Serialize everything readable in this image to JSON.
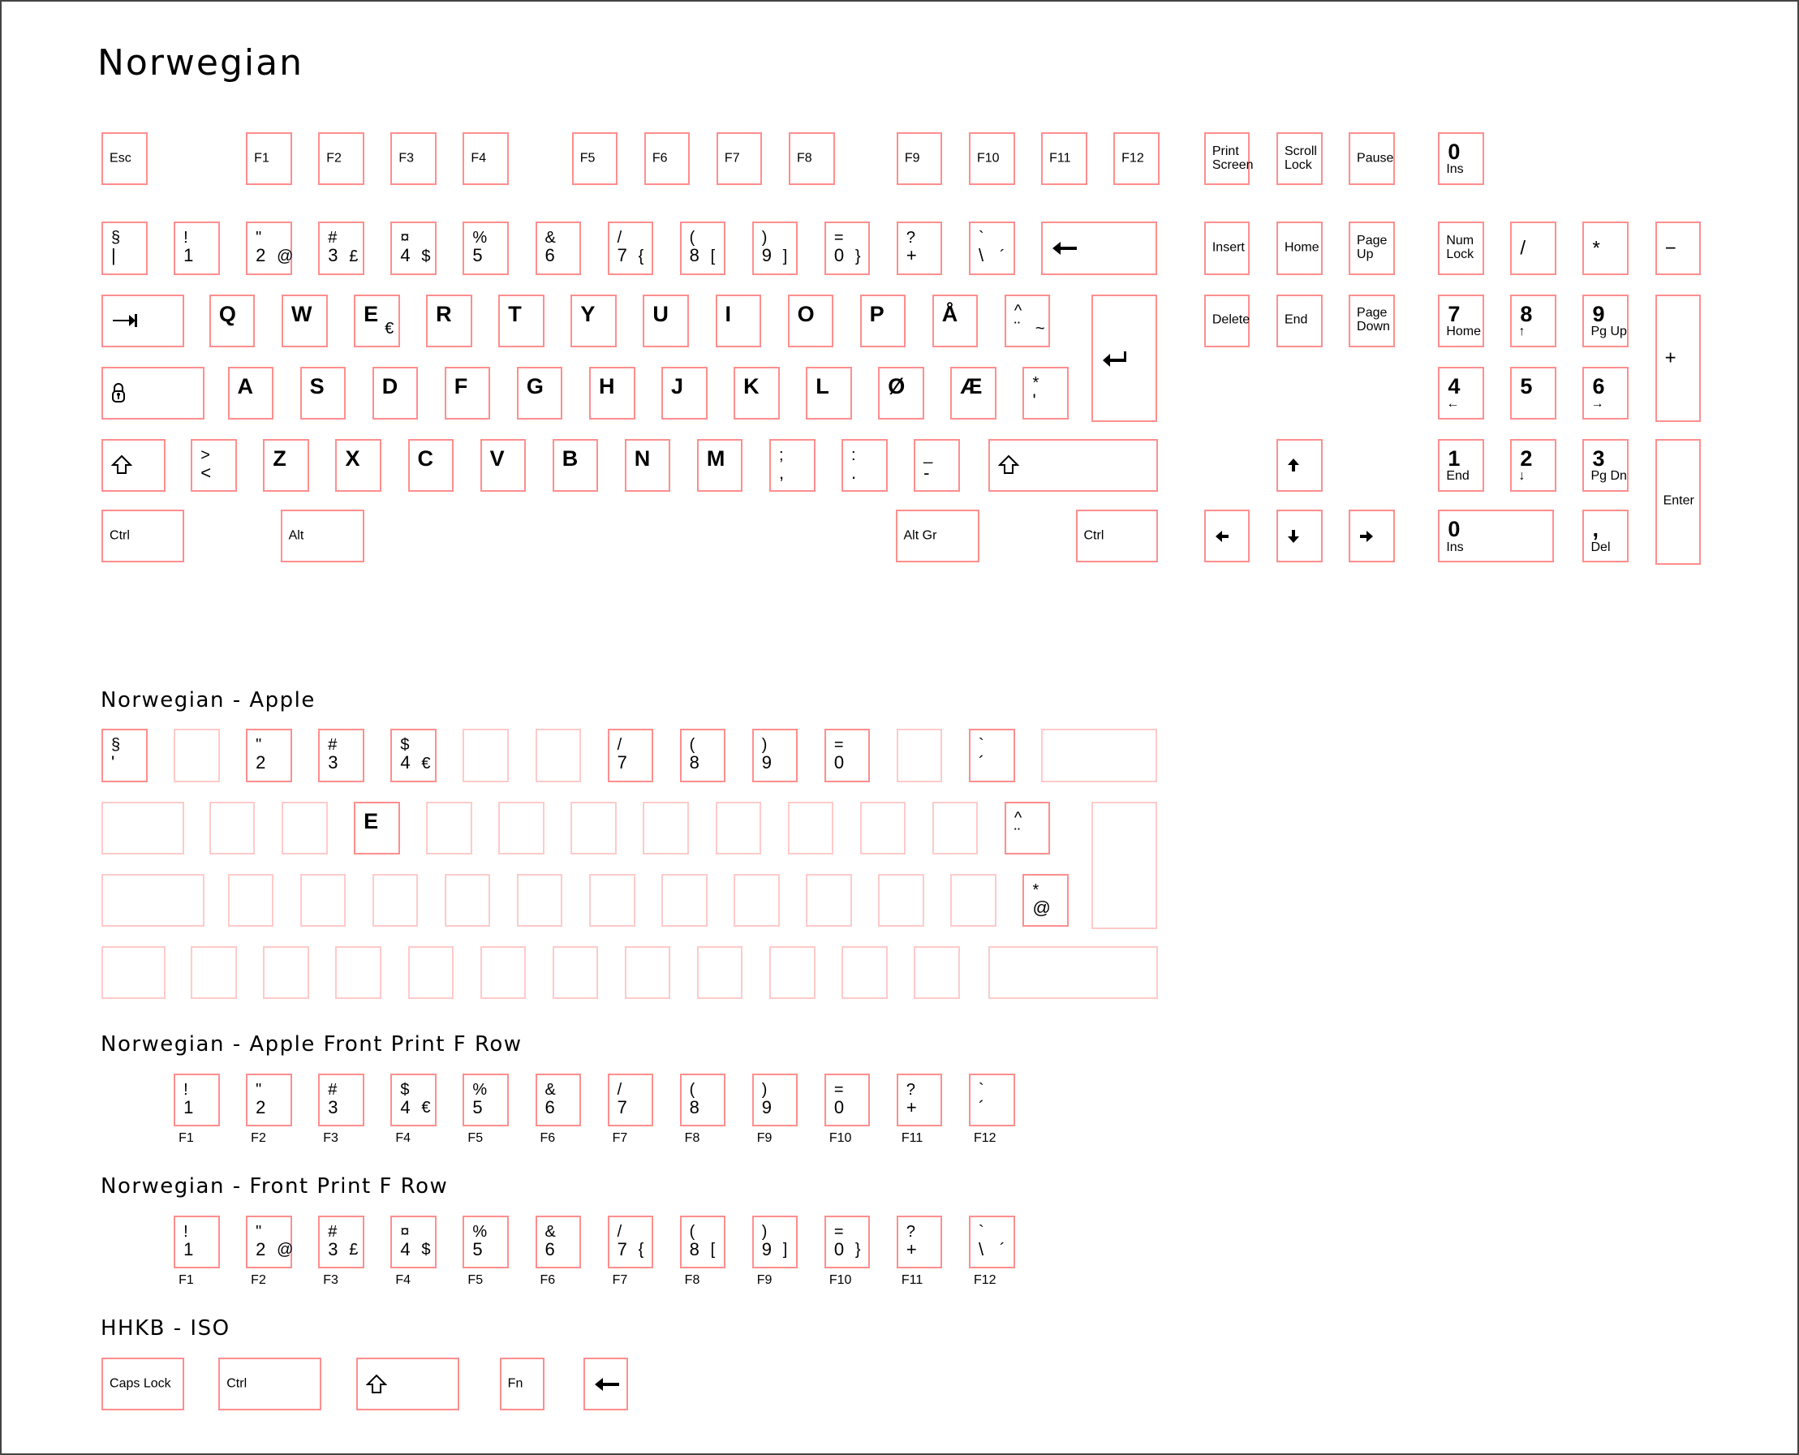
{
  "title": "Norwegian",
  "colors": {
    "key_border": "#ff8e8e",
    "blank_key_border": "#ffcaca"
  },
  "sections": [
    {
      "title": "",
      "keys": [
        {
          "label": "Esc"
        },
        {
          "label": "F1"
        },
        {
          "label": "F2"
        },
        {
          "label": "F3"
        },
        {
          "label": "F4"
        },
        {
          "label": "F5"
        },
        {
          "label": "F6"
        },
        {
          "label": "F7"
        },
        {
          "label": "F8"
        },
        {
          "label": "F9"
        },
        {
          "label": "F10"
        },
        {
          "label": "F11"
        },
        {
          "label": "F12"
        },
        {
          "label": "Print\nScreen"
        },
        {
          "label": "Scroll\nLock"
        },
        {
          "label": "Pause"
        },
        {
          "t": "0",
          "sub": "Ins"
        },
        {
          "top": "§",
          "bot": "|"
        },
        {
          "top": "!",
          "bot": "1"
        },
        {
          "top": "\"",
          "bot": "2",
          "br": "@"
        },
        {
          "top": "#",
          "bot": "3",
          "br": "£"
        },
        {
          "top": "¤",
          "bot": "4",
          "br": "$"
        },
        {
          "top": "%",
          "bot": "5"
        },
        {
          "top": "&",
          "bot": "6"
        },
        {
          "top": "/",
          "bot": "7",
          "br": "{"
        },
        {
          "top": "(",
          "bot": "8",
          "br": "["
        },
        {
          "top": ")",
          "bot": "9",
          "br": "]"
        },
        {
          "top": "=",
          "bot": "0",
          "br": "}"
        },
        {
          "top": "?",
          "bot": "+"
        },
        {
          "top": "`",
          "bot": "\\",
          "br": "´"
        },
        {
          "icon": "backspace-icon"
        },
        {
          "label": "Insert"
        },
        {
          "label": "Home"
        },
        {
          "label": "Page\nUp"
        },
        {
          "label": "Num\nLock"
        },
        {
          "sym": "/"
        },
        {
          "sym": "*"
        },
        {
          "sym": "−"
        },
        {
          "icon": "tab-icon"
        },
        {
          "t": "Q"
        },
        {
          "t": "W"
        },
        {
          "t": "E",
          "br": "€"
        },
        {
          "t": "R"
        },
        {
          "t": "T"
        },
        {
          "t": "Y"
        },
        {
          "t": "U"
        },
        {
          "t": "I"
        },
        {
          "t": "O"
        },
        {
          "t": "P"
        },
        {
          "t": "Å"
        },
        {
          "top": "^",
          "bot": "¨",
          "br": "~"
        },
        {
          "icon": "enter-icon"
        },
        {
          "label": "Delete"
        },
        {
          "label": "End"
        },
        {
          "label": "Page\nDown"
        },
        {
          "t": "7",
          "sub": "Home"
        },
        {
          "t": "8",
          "sub": "↑"
        },
        {
          "t": "9",
          "sub": "Pg Up"
        },
        {
          "sym": "+"
        },
        {
          "icon": "caps-lock-icon"
        },
        {
          "t": "A"
        },
        {
          "t": "S"
        },
        {
          "t": "D"
        },
        {
          "t": "F"
        },
        {
          "t": "G"
        },
        {
          "t": "H"
        },
        {
          "t": "J"
        },
        {
          "t": "K"
        },
        {
          "t": "L"
        },
        {
          "t": "Ø"
        },
        {
          "t": "Æ"
        },
        {
          "top": "*",
          "bot": "'"
        },
        {
          "t": "4",
          "sub": "←"
        },
        {
          "t": "5"
        },
        {
          "t": "6",
          "sub": "→"
        },
        {
          "icon": "shift-icon"
        },
        {
          "top": ">",
          "bot": "<"
        },
        {
          "t": "Z"
        },
        {
          "t": "X"
        },
        {
          "t": "C"
        },
        {
          "t": "V"
        },
        {
          "t": "B"
        },
        {
          "t": "N"
        },
        {
          "t": "M"
        },
        {
          "top": ";",
          "bot": ","
        },
        {
          "top": ":",
          "bot": "."
        },
        {
          "top": "_",
          "bot": "-"
        },
        {
          "icon": "shift-icon"
        },
        {
          "icon": "arrow-up-icon"
        },
        {
          "t": "1",
          "sub": "End"
        },
        {
          "t": "2",
          "sub": "↓"
        },
        {
          "t": "3",
          "sub": "Pg Dn"
        },
        {
          "label": "Enter"
        },
        {
          "label": "Ctrl"
        },
        {
          "label": "Alt"
        },
        {
          "label": "Alt Gr"
        },
        {
          "label": "Ctrl"
        },
        {
          "icon": "arrow-left-icon"
        },
        {
          "icon": "arrow-down-icon"
        },
        {
          "icon": "arrow-right-icon"
        },
        {
          "t": "0",
          "sub": "Ins"
        },
        {
          "t": ",",
          "sub": "Del"
        }
      ]
    },
    {
      "title": "Norwegian - Apple",
      "keys": [
        {
          "top": "§",
          "bot": "'"
        },
        {},
        {
          "top": "\"",
          "bot": "2"
        },
        {
          "top": "#",
          "bot": "3"
        },
        {
          "top": "$",
          "bot": "4",
          "br": "€"
        },
        {},
        {},
        {
          "top": "/",
          "bot": "7"
        },
        {
          "top": "(",
          "bot": "8"
        },
        {
          "top": ")",
          "bot": "9"
        },
        {
          "top": "=",
          "bot": "0"
        },
        {},
        {
          "top": "`",
          "bot": "´"
        },
        {},
        {},
        {},
        {},
        {
          "t": "E"
        },
        {},
        {},
        {},
        {},
        {},
        {},
        {},
        {},
        {
          "top": "^",
          "bot": "¨"
        },
        {},
        {},
        {},
        {},
        {},
        {},
        {},
        {},
        {},
        {},
        {},
        {},
        {},
        {
          "top": "*",
          "bot": "@"
        },
        {},
        {},
        {},
        {},
        {},
        {},
        {},
        {},
        {},
        {},
        {},
        {},
        {}
      ]
    },
    {
      "title": "Norwegian - Apple Front Print F Row",
      "keys": [
        {
          "top": "!",
          "bot": "1",
          "fn": "F1"
        },
        {
          "top": "\"",
          "bot": "2",
          "fn": "F2"
        },
        {
          "top": "#",
          "bot": "3",
          "fn": "F3"
        },
        {
          "top": "$",
          "bot": "4",
          "br": "€",
          "fn": "F4"
        },
        {
          "top": "%",
          "bot": "5",
          "fn": "F5"
        },
        {
          "top": "&",
          "bot": "6",
          "fn": "F6"
        },
        {
          "top": "/",
          "bot": "7",
          "fn": "F7"
        },
        {
          "top": "(",
          "bot": "8",
          "fn": "F8"
        },
        {
          "top": ")",
          "bot": "9",
          "fn": "F9"
        },
        {
          "top": "=",
          "bot": "0",
          "fn": "F10"
        },
        {
          "top": "?",
          "bot": "+",
          "fn": "F11"
        },
        {
          "top": "`",
          "bot": "´",
          "fn": "F12"
        }
      ]
    },
    {
      "title": "Norwegian - Front Print F Row",
      "keys": [
        {
          "top": "!",
          "bot": "1",
          "fn": "F1"
        },
        {
          "top": "\"",
          "bot": "2",
          "br": "@",
          "fn": "F2"
        },
        {
          "top": "#",
          "bot": "3",
          "br": "£",
          "fn": "F3"
        },
        {
          "top": "¤",
          "bot": "4",
          "br": "$",
          "fn": "F4"
        },
        {
          "top": "%",
          "bot": "5",
          "fn": "F5"
        },
        {
          "top": "&",
          "bot": "6",
          "fn": "F6"
        },
        {
          "top": "/",
          "bot": "7",
          "br": "{",
          "fn": "F7"
        },
        {
          "top": "(",
          "bot": "8",
          "br": "[",
          "fn": "F8"
        },
        {
          "top": ")",
          "bot": "9",
          "br": "]",
          "fn": "F9"
        },
        {
          "top": "=",
          "bot": "0",
          "br": "}",
          "fn": "F10"
        },
        {
          "top": "?",
          "bot": "+",
          "fn": "F11"
        },
        {
          "top": "`",
          "bot": "\\",
          "br": "´",
          "fn": "F12"
        }
      ]
    },
    {
      "title": "HHKB - ISO",
      "keys": [
        {
          "label": "Caps Lock"
        },
        {
          "label": "Ctrl"
        },
        {
          "icon": "shift-icon"
        },
        {
          "label": "Fn"
        },
        {
          "icon": "backspace-icon"
        }
      ]
    }
  ]
}
